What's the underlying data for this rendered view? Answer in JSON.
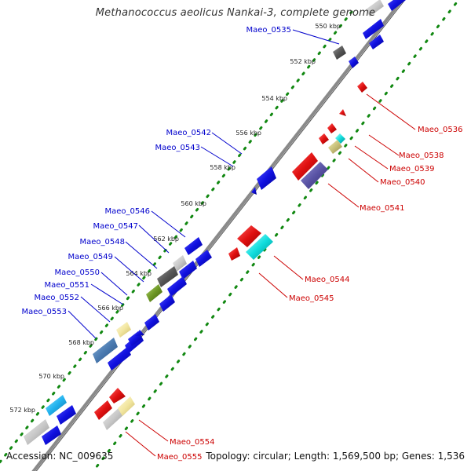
{
  "title": "Methanococcus aeolicus Nankai-3, complete genome",
  "footer": {
    "accession": "Accession: NC_009635",
    "summary": "Topology: circular; Length: 1,569,500 bp; Genes: 1,536"
  },
  "colors": {
    "forward_label": "#0000cc",
    "reverse_label": "#cc0000",
    "tick_dots": "#118811",
    "backbone": "#8a8a8a",
    "gene_blue": "#1010e0",
    "gene_red": "#e01010"
  },
  "kbp_ticks": [
    "550 kbp",
    "552 kbp",
    "554 kbp",
    "556 kbp",
    "558 kbp",
    "560 kbp",
    "562 kbp",
    "564 kbp",
    "566 kbp",
    "568 kbp",
    "570 kbp",
    "572 kbp"
  ],
  "forward_genes": [
    "Maeo_0535",
    "Maeo_0542",
    "Maeo_0543",
    "Maeo_0546",
    "Maeo_0547",
    "Maeo_0548",
    "Maeo_0549",
    "Maeo_0550",
    "Maeo_0551",
    "Maeo_0552",
    "Maeo_0553"
  ],
  "reverse_genes": [
    "Maeo_0536",
    "Maeo_0538",
    "Maeo_0539",
    "Maeo_0540",
    "Maeo_0541",
    "Maeo_0544",
    "Maeo_0545",
    "Maeo_0554",
    "Maeo_0555"
  ]
}
